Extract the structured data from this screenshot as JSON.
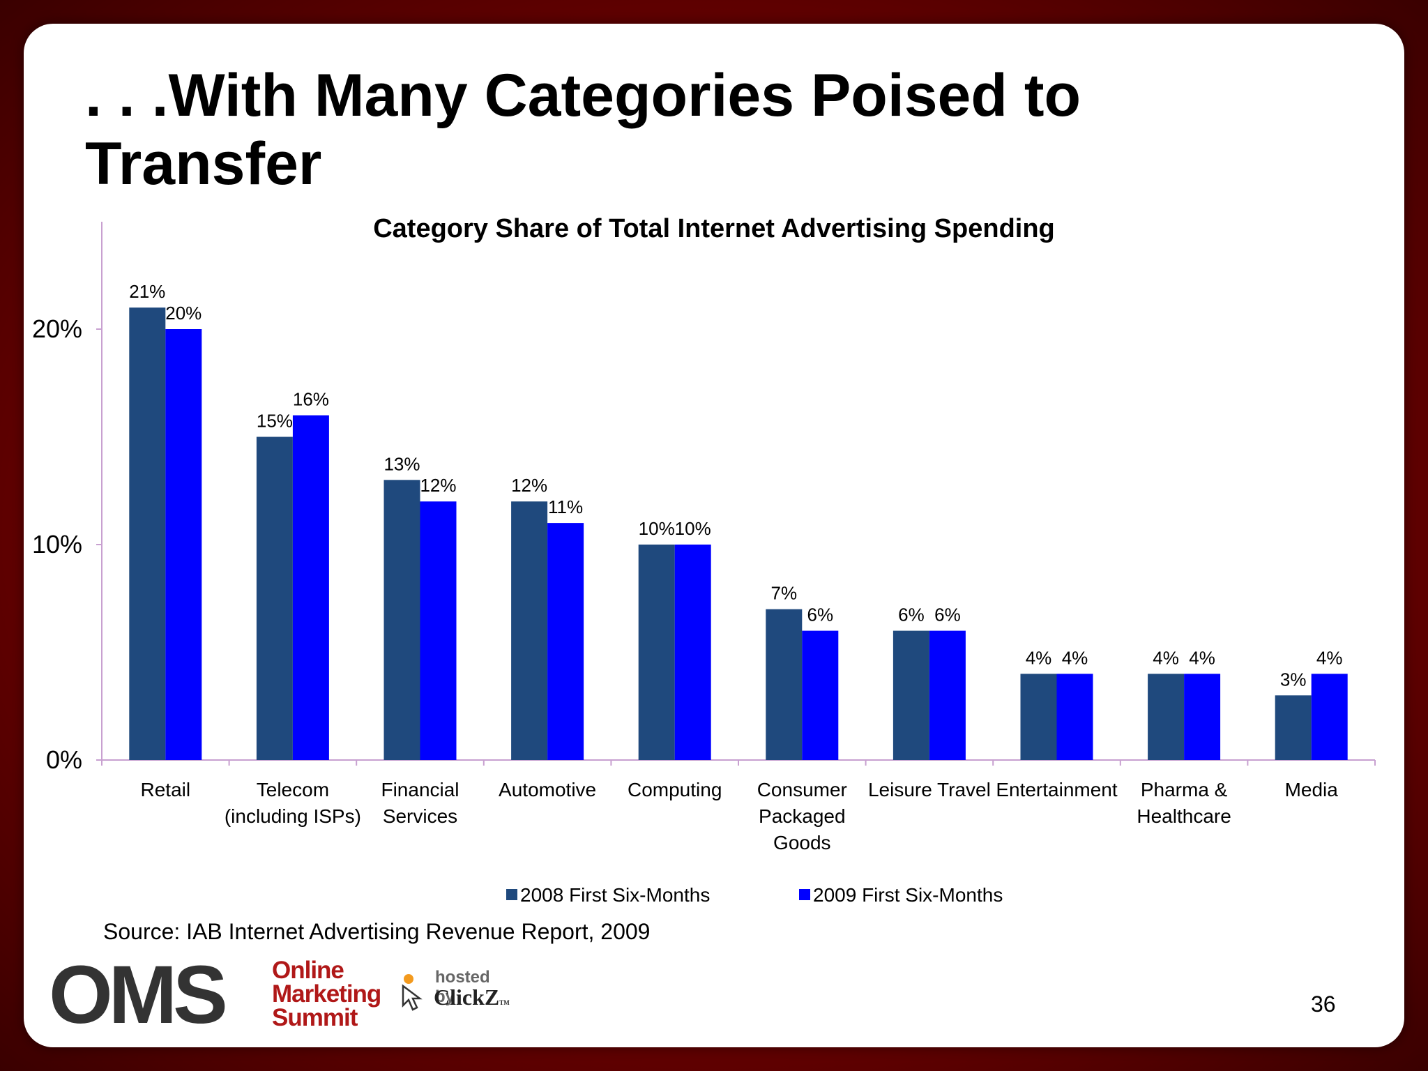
{
  "slide": {
    "title": ". . .With Many Categories Poised to Transfer",
    "source": "Source: IAB Internet Advertising Revenue Report, 2009",
    "page_number": "36"
  },
  "logos": {
    "oms_letters": "OMS",
    "oms_word1": "Online",
    "oms_word2": "Marketing",
    "oms_word3": "Summit",
    "hosted_by": "hosted by",
    "clickz": "ClickZ",
    "clickz_tm": "TM"
  },
  "colors": {
    "series_2008": "#1f497d",
    "series_2009": "#0000ff",
    "axis": "#c8a0d0",
    "background": "#8b0000"
  },
  "chart_data": {
    "type": "bar",
    "title": "Category Share of Total Internet Advertising Spending",
    "categories": [
      [
        "Retail"
      ],
      [
        "Telecom",
        "(including ISPs)"
      ],
      [
        "Financial",
        "Services"
      ],
      [
        "Automotive"
      ],
      [
        "Computing"
      ],
      [
        "Consumer",
        "Packaged",
        "Goods"
      ],
      [
        "Leisure Travel"
      ],
      [
        "Entertainment"
      ],
      [
        "Pharma &",
        "Healthcare"
      ],
      [
        "Media"
      ]
    ],
    "series": [
      {
        "name": "2008 First Six-Months",
        "values": [
          21,
          15,
          13,
          12,
          10,
          7,
          6,
          4,
          4,
          3
        ],
        "labels": [
          "21%",
          "15%",
          "13%",
          "12%",
          "10%",
          "7%",
          "6%",
          "4%",
          "4%",
          "3%"
        ]
      },
      {
        "name": "2009 First Six-Months",
        "values": [
          20,
          16,
          12,
          11,
          10,
          6,
          6,
          4,
          4,
          4
        ],
        "labels": [
          "20%",
          "16%",
          "12%",
          "11%",
          "10%",
          "6%",
          "6%",
          "4%",
          "4%",
          "4%"
        ]
      }
    ],
    "yticks": [
      "0%",
      "10%",
      "20%"
    ],
    "ytick_values": [
      0,
      10,
      20
    ],
    "ylim": [
      0,
      25
    ],
    "grid": false,
    "legend": "bottom"
  }
}
